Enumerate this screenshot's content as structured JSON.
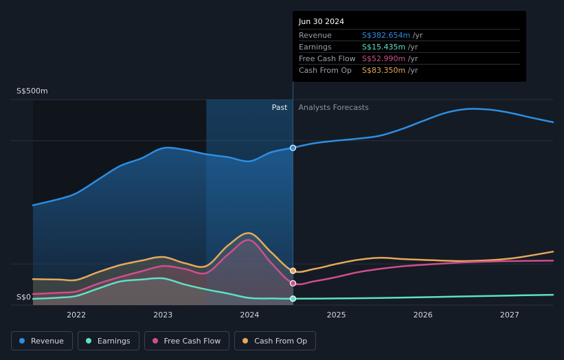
{
  "chart_data": {
    "type": "area",
    "title": "",
    "y_top_label": "S$500m",
    "y_zero_label": "S$0",
    "ylim": [
      0,
      500
    ],
    "x_ticks": [
      "2022",
      "2023",
      "2024",
      "2025",
      "2026",
      "2027"
    ],
    "xlim": [
      2021.5,
      2027.5
    ],
    "past_label": "Past",
    "forecast_label": "Analysts Forecasts",
    "divider_x": 2024.5,
    "highlight_start_x": 2023.5,
    "series": [
      {
        "name": "Revenue",
        "color": "#2d8ee4",
        "x": [
          2021.5,
          2021.8,
          2022.0,
          2022.25,
          2022.5,
          2022.75,
          2023.0,
          2023.25,
          2023.5,
          2023.75,
          2024.0,
          2024.25,
          2024.5,
          2024.75,
          2025.0,
          2025.25,
          2025.5,
          2025.75,
          2026.0,
          2026.25,
          2026.5,
          2026.75,
          2027.0,
          2027.25,
          2027.5
        ],
        "values": [
          243,
          258,
          272,
          305,
          338,
          357,
          382,
          378,
          367,
          360,
          350,
          372,
          383,
          394,
          400,
          405,
          412,
          428,
          448,
          467,
          477,
          476,
          468,
          456,
          445
        ]
      },
      {
        "name": "Earnings",
        "color": "#5ee1c4",
        "x": [
          2021.5,
          2021.8,
          2022.0,
          2022.25,
          2022.5,
          2022.75,
          2023.0,
          2023.25,
          2023.5,
          2023.75,
          2024.0,
          2024.25,
          2024.5,
          2025.0,
          2025.5,
          2026.0,
          2026.5,
          2027.0,
          2027.5
        ],
        "values": [
          15,
          18,
          22,
          40,
          57,
          62,
          65,
          50,
          38,
          28,
          17,
          16,
          15.4,
          16,
          17,
          19,
          21,
          23,
          25
        ]
      },
      {
        "name": "Free Cash Flow",
        "color": "#d04e8e",
        "x": [
          2021.5,
          2021.8,
          2022.0,
          2022.25,
          2022.5,
          2022.75,
          2023.0,
          2023.25,
          2023.5,
          2023.75,
          2024.0,
          2024.25,
          2024.5,
          2024.75,
          2025.0,
          2025.25,
          2025.5,
          2025.75,
          2026.0,
          2026.5,
          2027.0,
          2027.5
        ],
        "values": [
          27,
          30,
          33,
          52,
          68,
          82,
          95,
          88,
          78,
          123,
          158,
          102,
          53,
          58,
          68,
          80,
          88,
          94,
          98,
          104,
          107,
          108
        ]
      },
      {
        "name": "Cash From Op",
        "color": "#e6a95a",
        "x": [
          2021.5,
          2021.8,
          2022.0,
          2022.25,
          2022.5,
          2022.75,
          2023.0,
          2023.25,
          2023.5,
          2023.75,
          2024.0,
          2024.25,
          2024.5,
          2024.75,
          2025.0,
          2025.25,
          2025.5,
          2025.75,
          2026.0,
          2026.5,
          2027.0,
          2027.5
        ],
        "values": [
          63,
          62,
          61,
          80,
          97,
          108,
          117,
          102,
          95,
          145,
          175,
          128,
          83,
          88,
          100,
          110,
          115,
          112,
          110,
          107,
          113,
          130
        ]
      }
    ],
    "highlight_points": [
      {
        "series": "Revenue",
        "x": 2024.5,
        "value": 382.654
      },
      {
        "series": "Cash From Op",
        "x": 2024.5,
        "value": 83.35
      },
      {
        "series": "Free Cash Flow",
        "x": 2024.5,
        "value": 52.99
      },
      {
        "series": "Earnings",
        "x": 2024.5,
        "value": 15.435
      }
    ]
  },
  "tooltip": {
    "date": "Jun 30 2024",
    "unit": "/yr",
    "rows": [
      {
        "label": "Revenue",
        "value": "S$382.654m",
        "color": "#2d8ee4"
      },
      {
        "label": "Earnings",
        "value": "S$15.435m",
        "color": "#5ee1c4"
      },
      {
        "label": "Free Cash Flow",
        "value": "S$52.990m",
        "color": "#d04e8e"
      },
      {
        "label": "Cash From Op",
        "value": "S$83.350m",
        "color": "#e6a95a"
      }
    ]
  },
  "legend": [
    {
      "label": "Revenue",
      "color": "#2d8ee4"
    },
    {
      "label": "Earnings",
      "color": "#5ee1c4"
    },
    {
      "label": "Free Cash Flow",
      "color": "#d04e8e"
    },
    {
      "label": "Cash From Op",
      "color": "#e6a95a"
    }
  ]
}
